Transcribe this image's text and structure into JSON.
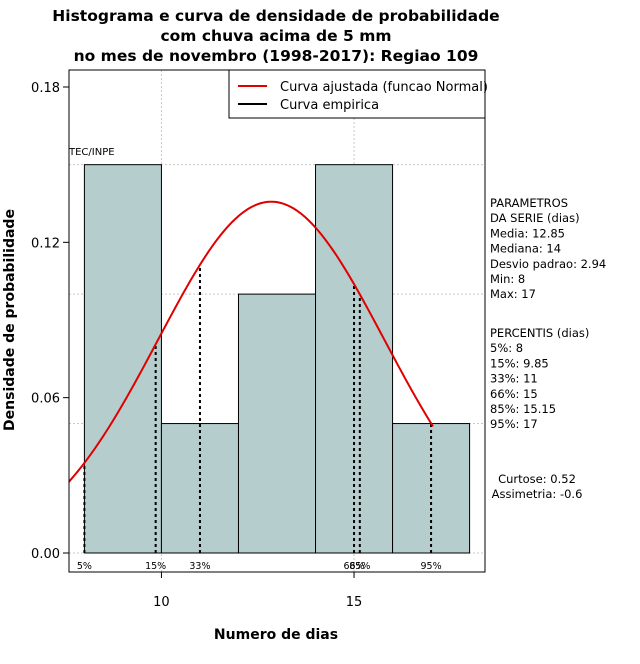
{
  "chart_data": {
    "type": "bar",
    "title_lines": [
      "Histograma e curva de densidade de probabilidade",
      "com chuva acima de 5 mm",
      "no mes de novembro (1998-2017): Regiao 109"
    ],
    "xlabel": "Numero de dias",
    "ylabel": "Densidade de probabilidade",
    "xlim": [
      7.6,
      18.4
    ],
    "ylim": [
      0,
      0.18
    ],
    "x_ticks": [
      10,
      15
    ],
    "y_ticks": [
      0.0,
      0.06,
      0.12,
      0.18
    ],
    "y_tick_labels": [
      "0.00",
      "0.06",
      "0.12",
      "0.18"
    ],
    "grid": true,
    "bar_color": "#b6cdcd",
    "bins": [
      {
        "start": 8,
        "end": 10,
        "density": 0.15
      },
      {
        "start": 10,
        "end": 12,
        "density": 0.05
      },
      {
        "start": 12,
        "end": 14,
        "density": 0.1
      },
      {
        "start": 14,
        "end": 16,
        "density": 0.15
      },
      {
        "start": 16,
        "end": 18,
        "density": 0.05
      }
    ],
    "normal_curve": {
      "mean": 12.85,
      "sd": 2.94,
      "x_from": 7.6,
      "x_to": 17.05,
      "color": "#e00000"
    },
    "percentile_lines": [
      {
        "label": "5%",
        "x": 8
      },
      {
        "label": "15%",
        "x": 9.85
      },
      {
        "label": "33%",
        "x": 11
      },
      {
        "label": "66%",
        "x": 15
      },
      {
        "label": "85%",
        "x": 15.15
      },
      {
        "label": "95%",
        "x": 17
      }
    ],
    "legend": {
      "position": "top-right",
      "entries": [
        {
          "label": "Curva ajustada (funcao Normal)",
          "color": "#e00000"
        },
        {
          "label": "Curva empirica",
          "color": "#000000"
        }
      ]
    },
    "watermark": "TEC/INPE",
    "parametros_lines": [
      "PARAMETROS",
      "DA SERIE (dias)",
      "  Media: 12.85",
      "  Mediana: 14",
      "  Desvio padrao: 2.94",
      "  Min: 8",
      "  Max: 17"
    ],
    "percentis_lines": [
      "PERCENTIS (dias)",
      "   5%: 8",
      "   15%: 9.85",
      "   33%: 11",
      "   66%: 15",
      "   85%: 15.15",
      "   95%: 17"
    ],
    "shape_lines": [
      "Curtose: 0.52",
      "Assimetria: -0.6"
    ]
  }
}
